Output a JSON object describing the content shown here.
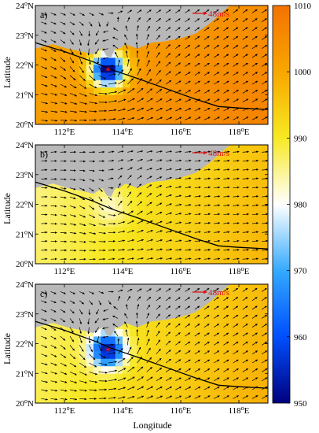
{
  "chart_data": {
    "type": "heatmap",
    "description_type": "wind-vector field over sea-level-pressure (hPa) maps, three panels",
    "xlabel": "Longitude",
    "ylabel": "Latitude",
    "xlim": [
      111,
      119
    ],
    "ylim": [
      20,
      24
    ],
    "x_ticks": [
      112,
      114,
      116,
      118
    ],
    "x_tick_labels": [
      "112°E",
      "114°E",
      "116°E",
      "118°E"
    ],
    "y_ticks": [
      20,
      21,
      22,
      23,
      24
    ],
    "y_tick_labels": [
      "20°N",
      "21°N",
      "22°N",
      "23°N",
      "24°N"
    ],
    "reference_vector_label": "48m/s",
    "colorbar": {
      "min": 950,
      "max": 1010,
      "ticks": [
        950,
        960,
        970,
        980,
        990,
        1000,
        1010
      ],
      "tick_labels": [
        "950",
        "960",
        "970",
        "980",
        "990",
        "1000",
        "1010"
      ],
      "colors": [
        "#00007f",
        "#0050ff",
        "#32a8ff",
        "#ffffff",
        "#f7e820",
        "#f8a800",
        "#f47200"
      ]
    },
    "track": {
      "lon": [
        111.0,
        112.0,
        113.0,
        113.6,
        114.5,
        115.5,
        116.5,
        117.3,
        118.0,
        119.0
      ],
      "lat": [
        22.75,
        22.45,
        22.1,
        21.85,
        21.55,
        21.2,
        20.85,
        20.6,
        20.55,
        20.5
      ]
    },
    "panels": [
      {
        "label": "a)",
        "center_lon": 113.5,
        "center_lat": 21.85,
        "has_vortex": true,
        "background_pressure": 1004,
        "core_pressure": 950
      },
      {
        "label": "b)",
        "center_lon": 113.6,
        "center_lat": 21.9,
        "has_vortex": false,
        "background_pressure": 992,
        "core_pressure": 985
      },
      {
        "label": "c)",
        "center_lon": 113.5,
        "center_lat": 21.8,
        "has_vortex": true,
        "background_pressure": 993,
        "core_pressure": 955
      }
    ]
  }
}
